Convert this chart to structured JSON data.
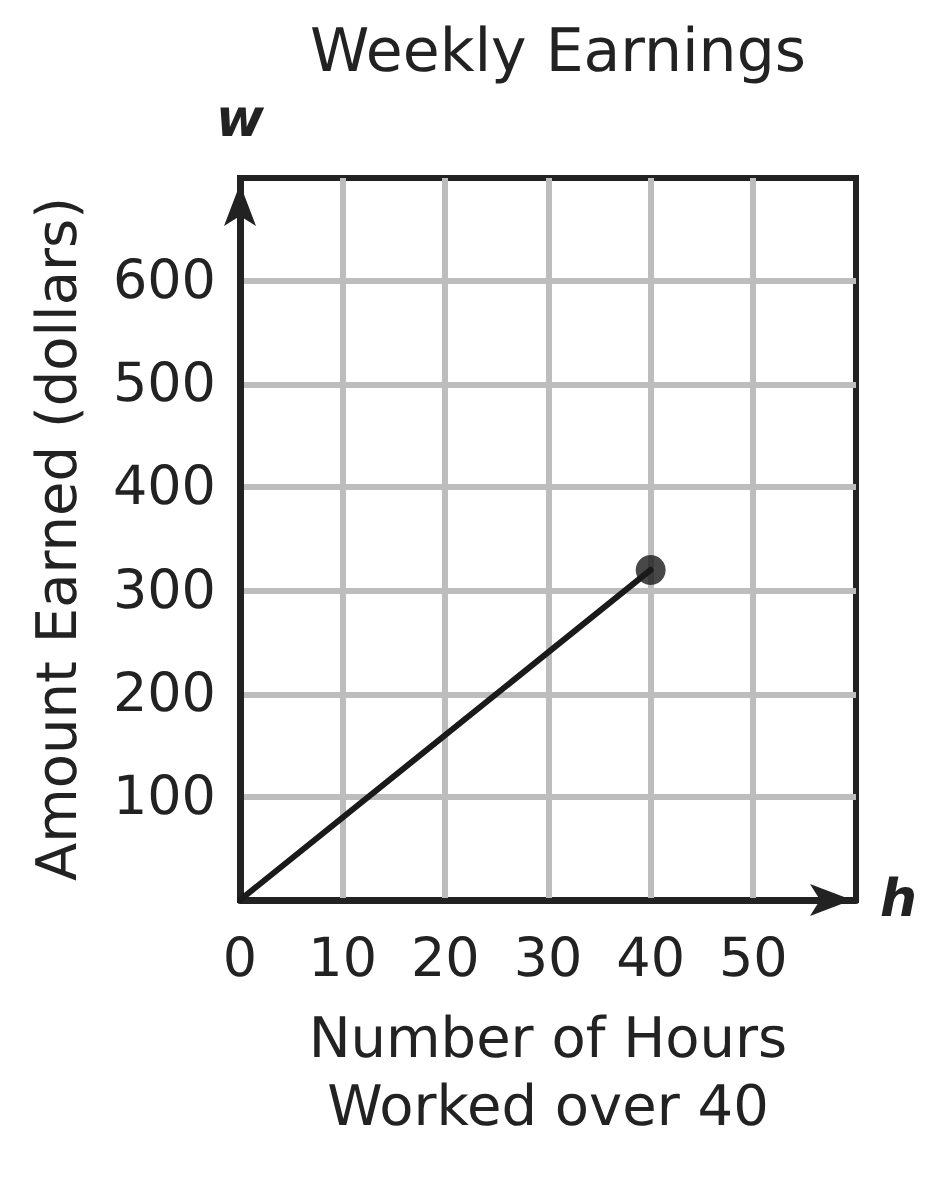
{
  "chart_data": {
    "type": "line",
    "title": "Weekly Earnings",
    "xlabel": "Number of Hours Worked over 40",
    "ylabel": "Amount Earned (dollars)",
    "annotations": [
      "w",
      "h"
    ],
    "x": [
      0,
      40
    ],
    "xlim": [
      0,
      60
    ],
    "xticks": [
      0,
      10,
      20,
      30,
      40,
      50
    ],
    "ylim": [
      0,
      700
    ],
    "yticks": [
      100,
      200,
      300,
      400,
      500,
      600
    ],
    "grid": true,
    "series": [
      {
        "values": [
          0,
          320
        ],
        "color": "#1a1a1a",
        "marker": "none"
      },
      {
        "type": "scatter",
        "x": [
          40
        ],
        "values": [
          320
        ],
        "color": "#1a1a1a",
        "marker": "circle"
      }
    ]
  }
}
